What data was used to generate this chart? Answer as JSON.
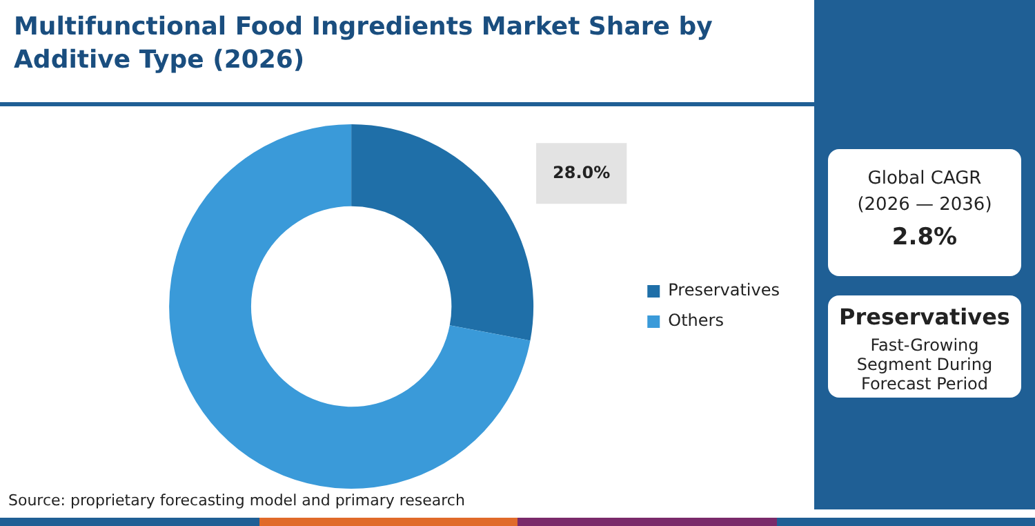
{
  "chart_data": {
    "type": "donut",
    "title": "Multifunctional Food Ingredients Market Share by Additive Type (2026)",
    "categories": [
      "Preservatives",
      "Others"
    ],
    "values": [
      28.0,
      72.0
    ],
    "colors": [
      "#1f6fa8",
      "#3a9ad9"
    ],
    "value_labels": [
      "28.0%",
      null
    ],
    "legend": "right",
    "annotations": [
      "Global CAGR",
      "(2026 — 2036)",
      "2.8%",
      "Preservatives",
      "Fast-Growing Segment During Forecast Period",
      "Source: proprietary forecasting model and primary research"
    ]
  }
}
